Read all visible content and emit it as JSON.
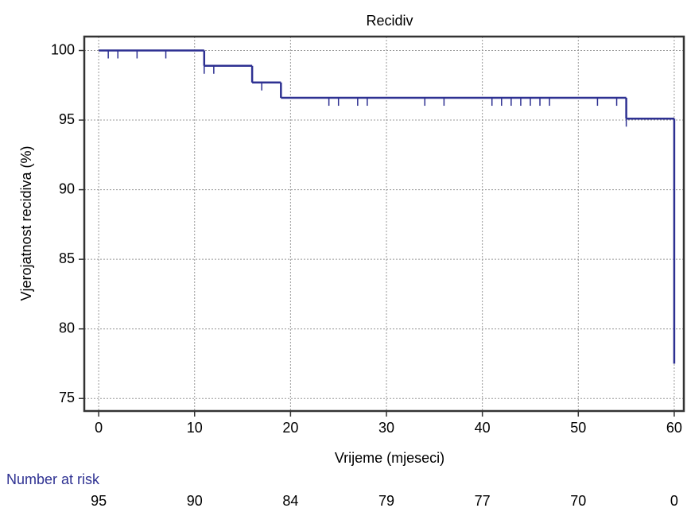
{
  "chart_data": {
    "type": "step",
    "title": "Recidiv",
    "xlabel": "Vrijeme (mjeseci)",
    "ylabel": "Vjerojatnost recidiva (%)",
    "x": [
      0,
      11,
      16,
      19,
      55,
      60
    ],
    "values": [
      100,
      98.9,
      97.7,
      96.6,
      95.1,
      77.5
    ],
    "color": "#2e3192",
    "censored": {
      "x": [
        1,
        2,
        4,
        7,
        11,
        12,
        17,
        24,
        25,
        27,
        28,
        34,
        36,
        41,
        42,
        43,
        44,
        45,
        46,
        47,
        52,
        54,
        55
      ],
      "values": [
        100,
        100,
        100,
        100,
        98.9,
        98.9,
        97.7,
        96.6,
        96.6,
        96.6,
        96.6,
        96.6,
        96.6,
        96.6,
        96.6,
        96.6,
        96.6,
        96.6,
        96.6,
        96.6,
        96.6,
        96.6,
        95.1
      ]
    },
    "xlim": [
      -1.5,
      61
    ],
    "ylim": [
      74.1,
      101
    ],
    "xticks": [
      0,
      10,
      20,
      30,
      40,
      50,
      60
    ],
    "yticks": [
      75,
      80,
      85,
      90,
      95,
      100
    ],
    "grid": true,
    "risk_label": "Number at risk",
    "risk_x": [
      0,
      10,
      20,
      30,
      40,
      50,
      60
    ],
    "risk_values": [
      95,
      90,
      84,
      79,
      77,
      70,
      0
    ]
  }
}
